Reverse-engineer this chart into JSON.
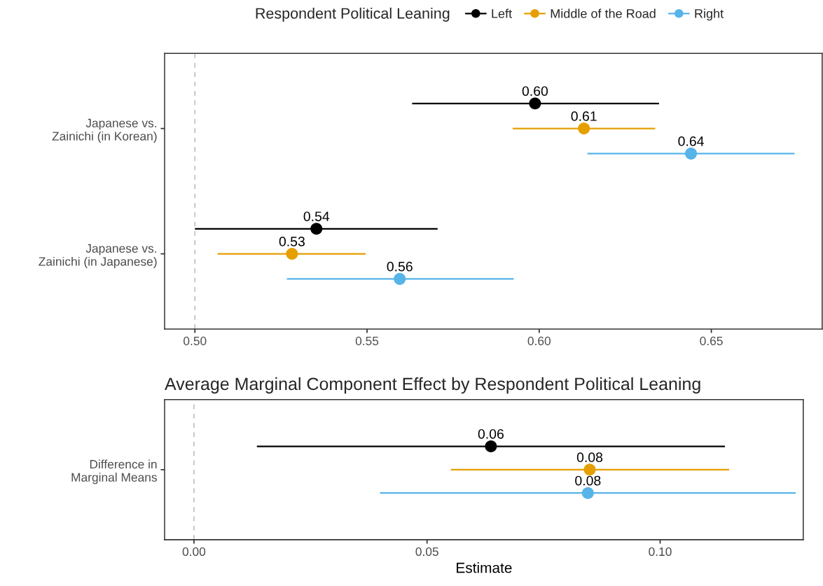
{
  "chart_data": [
    {
      "type": "scatter",
      "orientation": "horizontal",
      "categories": [
        "Japanese vs.\nZainichi (in Korean)",
        "Japanese vs.\nZainichi (in Japanese)"
      ],
      "legend_title": "Respondent Political Leaning",
      "legend": "top",
      "grid": false,
      "marker": "circle",
      "xlim": [
        0.4912,
        0.6822
      ],
      "xticks": [
        {
          "value": 0.5,
          "label": "0.50"
        },
        {
          "value": 0.55,
          "label": "0.55"
        },
        {
          "value": 0.6,
          "label": "0.60"
        },
        {
          "value": 0.65,
          "label": "0.65"
        }
      ],
      "ref_lines": [
        {
          "axis": "x",
          "value": 0.5,
          "color": "#bebebe",
          "line_style": "dashed"
        }
      ],
      "series": [
        {
          "name": "Left",
          "color": "#000000",
          "values": [
            0.5988,
            0.5353
          ],
          "errors": [
            [
              0.5631,
              0.6348
            ],
            [
              0.5,
              0.5705
            ]
          ],
          "value_labels": [
            "0.60",
            "0.54"
          ]
        },
        {
          "name": "Middle of the Road",
          "color": "#e69f00",
          "values": [
            0.613,
            0.5282
          ],
          "errors": [
            [
              0.5923,
              0.6337
            ],
            [
              0.5066,
              0.5496
            ]
          ],
          "value_labels": [
            "0.61",
            "0.53"
          ]
        },
        {
          "name": "Right",
          "color": "#56b4e9",
          "values": [
            0.6441,
            0.5595
          ],
          "errors": [
            [
              0.614,
              0.6742
            ],
            [
              0.5267,
              0.5926
            ]
          ],
          "value_labels": [
            "0.64",
            "0.56"
          ]
        }
      ]
    },
    {
      "type": "scatter",
      "orientation": "horizontal",
      "title": "Average Marginal Component Effect by Respondent Political Leaning",
      "xlabel": "Estimate",
      "categories": [
        "Difference in\nMarginal Means"
      ],
      "grid": false,
      "marker": "circle",
      "xlim": [
        -0.0063,
        0.1307
      ],
      "xticks": [
        {
          "value": 0.0,
          "label": "0.00"
        },
        {
          "value": 0.05,
          "label": "0.05"
        },
        {
          "value": 0.1,
          "label": "0.10"
        }
      ],
      "ref_lines": [
        {
          "axis": "x",
          "value": 0.0,
          "color": "#bebebe",
          "line_style": "dashed"
        }
      ],
      "series": [
        {
          "color": "#000000",
          "values": [
            0.0637
          ],
          "errors": [
            [
              0.0135,
              0.1139
            ]
          ],
          "value_labels": [
            "0.06"
          ]
        },
        {
          "color": "#e69f00",
          "values": [
            0.0849
          ],
          "errors": [
            [
              0.0551,
              0.1148
            ]
          ],
          "value_labels": [
            "0.08"
          ]
        },
        {
          "color": "#56b4e9",
          "values": [
            0.0845
          ],
          "errors": [
            [
              0.0399,
              0.1291
            ]
          ],
          "value_labels": [
            "0.08"
          ]
        }
      ]
    }
  ]
}
